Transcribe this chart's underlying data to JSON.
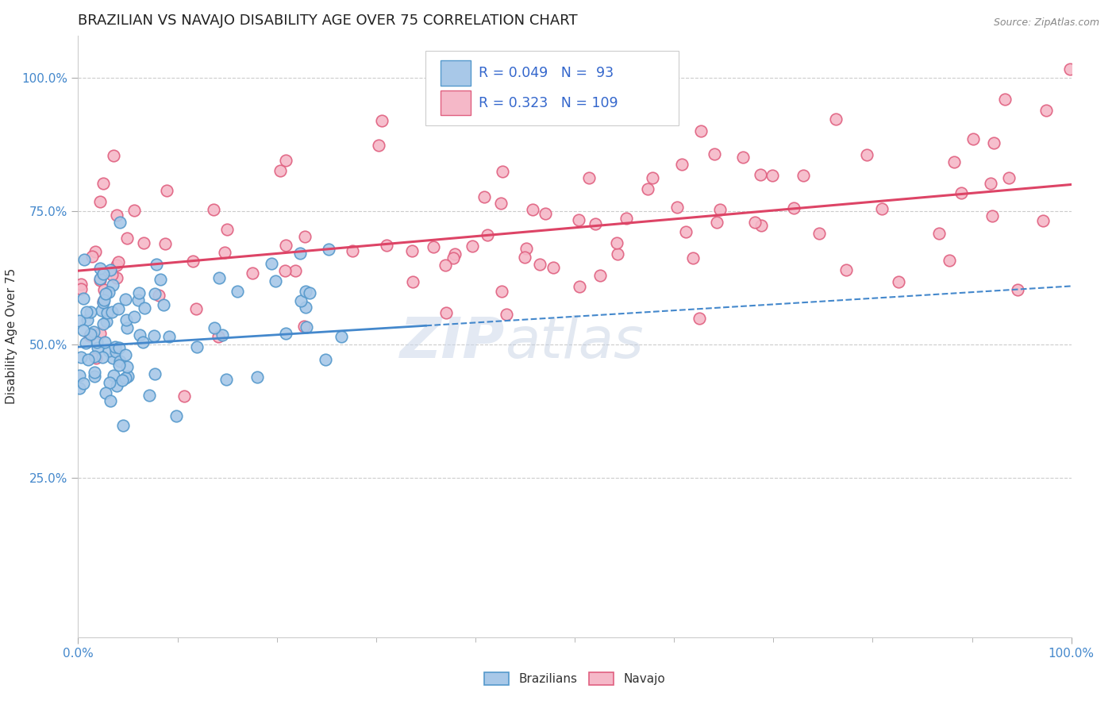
{
  "title": "BRAZILIAN VS NAVAJO DISABILITY AGE OVER 75 CORRELATION CHART",
  "source_text": "Source: ZipAtlas.com",
  "ylabel": "Disability Age Over 75",
  "xlim": [
    0.0,
    1.0
  ],
  "ylim": [
    -0.05,
    1.08
  ],
  "x_tick_labels": [
    "0.0%",
    "100.0%"
  ],
  "x_tick_positions": [
    0.0,
    1.0
  ],
  "y_tick_labels": [
    "25.0%",
    "50.0%",
    "75.0%",
    "100.0%"
  ],
  "y_tick_positions": [
    0.25,
    0.5,
    0.75,
    1.0
  ],
  "watermark_left": "ZIP",
  "watermark_right": "atlas",
  "legend_R_blue": "0.049",
  "legend_N_blue": "93",
  "legend_R_pink": "0.323",
  "legend_N_pink": "109",
  "blue_scatter_color": "#a8c8e8",
  "blue_edge_color": "#5599cc",
  "pink_scatter_color": "#f5b8c8",
  "pink_edge_color": "#e06080",
  "line_blue_color": "#4488cc",
  "line_pink_color": "#dd4466",
  "background_color": "#ffffff",
  "grid_color": "#cccccc",
  "title_fontsize": 13,
  "axis_label_fontsize": 11,
  "tick_fontsize": 11,
  "tick_color": "#4488cc",
  "blue_trend_start_x": 0.0,
  "blue_trend_end_x": 0.35,
  "blue_trend_start_y": 0.495,
  "blue_trend_end_y": 0.535,
  "pink_trend_start_x": 0.0,
  "pink_trend_end_x": 1.0,
  "pink_trend_start_y": 0.638,
  "pink_trend_end_y": 0.8
}
